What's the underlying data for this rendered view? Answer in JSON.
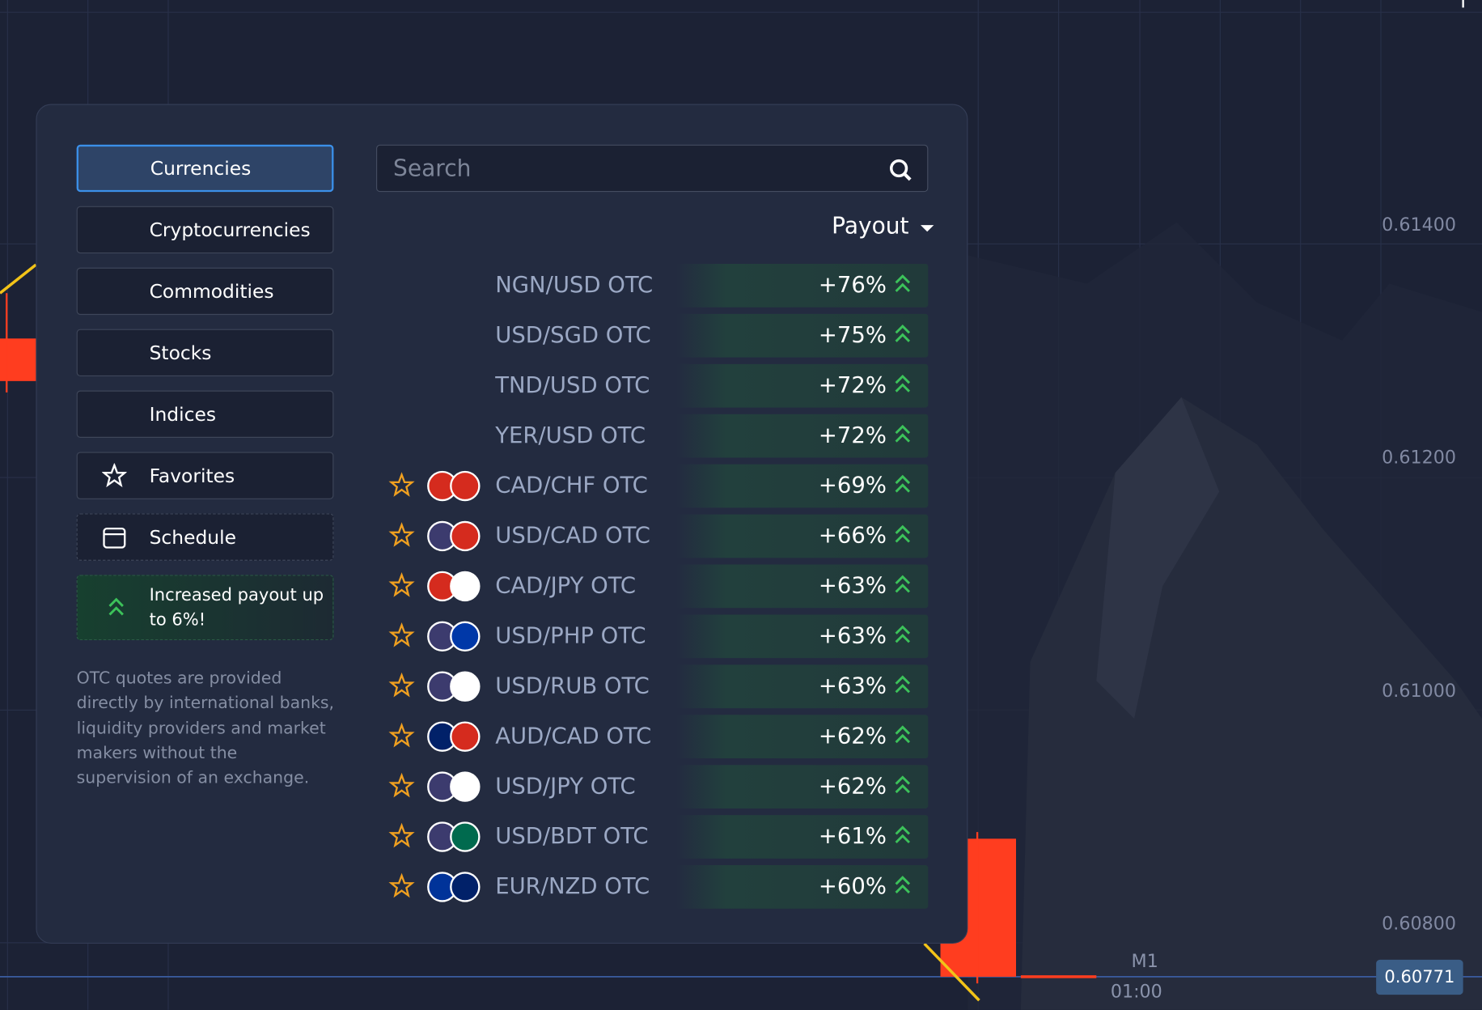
{
  "menu": [
    "Currencies",
    "Cryptocurrencies",
    "Commodities",
    "Stocks",
    "Indices",
    "Favorites",
    "Schedule"
  ],
  "promo": "Increased payout up to 6%!",
  "note": "OTC quotes are provided directly by international banks, liquidity providers and market makers without the supervision of an exchange.",
  "search": {
    "placeholder": "Search"
  },
  "sort": "Payout",
  "assets": [
    {
      "name": "NGN/USD OTC",
      "payout": "+76%"
    },
    {
      "name": "USD/SGD OTC",
      "payout": "+75%"
    },
    {
      "name": "TND/USD OTC",
      "payout": "+72%"
    },
    {
      "name": "YER/USD OTC",
      "payout": "+72%"
    },
    {
      "name": "CAD/CHF OTC",
      "payout": "+69%"
    },
    {
      "name": "USD/CAD OTC",
      "payout": "+66%"
    },
    {
      "name": "CAD/JPY OTC",
      "payout": "+63%"
    },
    {
      "name": "USD/PHP OTC",
      "payout": "+63%"
    },
    {
      "name": "USD/RUB OTC",
      "payout": "+63%"
    },
    {
      "name": "AUD/CAD OTC",
      "payout": "+62%"
    },
    {
      "name": "USD/JPY OTC",
      "payout": "+62%"
    },
    {
      "name": "USD/BDT OTC",
      "payout": "+61%"
    },
    {
      "name": "EUR/NZD OTC",
      "payout": "+60%"
    }
  ],
  "chart": {
    "price_labels": [
      "0.61400",
      "0.61200",
      "0.61000",
      "0.60800"
    ],
    "current_price": "0.60771",
    "timeframe": "M1",
    "time_label": "01:00"
  }
}
